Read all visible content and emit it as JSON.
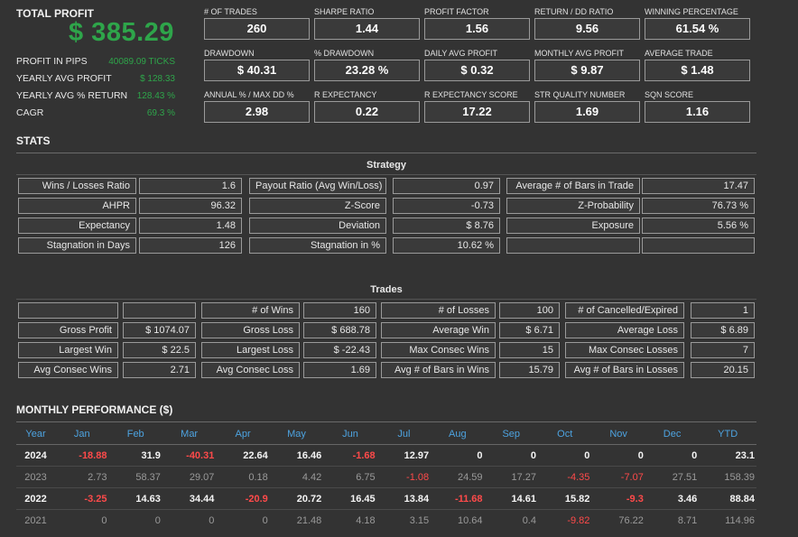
{
  "total": {
    "label": "TOTAL PROFIT",
    "value": "$ 385.29",
    "rows": [
      {
        "k": "PROFIT IN PIPS",
        "v": "40089.09 TICKS"
      },
      {
        "k": "YEARLY AVG PROFIT",
        "v": "$ 128.33"
      },
      {
        "k": "YEARLY AVG % RETURN",
        "v": "128.43 %"
      },
      {
        "k": "CAGR",
        "v": "69.3 %"
      }
    ]
  },
  "metrics": [
    {
      "label": "# OF TRADES",
      "value": "260"
    },
    {
      "label": "SHARPE RATIO",
      "value": "1.44"
    },
    {
      "label": "PROFIT FACTOR",
      "value": "1.56"
    },
    {
      "label": "RETURN / DD RATIO",
      "value": "9.56"
    },
    {
      "label": "WINNING PERCENTAGE",
      "value": "61.54 %"
    },
    {
      "label": "DRAWDOWN",
      "value": "$ 40.31"
    },
    {
      "label": "% DRAWDOWN",
      "value": "23.28 %"
    },
    {
      "label": "DAILY AVG PROFIT",
      "value": "$ 0.32"
    },
    {
      "label": "MONTHLY AVG PROFIT",
      "value": "$ 9.87"
    },
    {
      "label": "AVERAGE TRADE",
      "value": "$ 1.48"
    },
    {
      "label": "ANNUAL % / MAX DD %",
      "value": "2.98"
    },
    {
      "label": "R EXPECTANCY",
      "value": "0.22"
    },
    {
      "label": "R EXPECTANCY SCORE",
      "value": "17.22"
    },
    {
      "label": "STR QUALITY NUMBER",
      "value": "1.69"
    },
    {
      "label": "SQN SCORE",
      "value": "1.16"
    }
  ],
  "stats": {
    "title": "STATS",
    "strategy_title": "Strategy",
    "strategy": [
      [
        "Wins / Losses Ratio",
        "1.6",
        "Payout Ratio (Avg Win/Loss)",
        "0.97",
        "Average # of Bars in Trade",
        "17.47"
      ],
      [
        "AHPR",
        "96.32",
        "Z-Score",
        "-0.73",
        "Z-Probability",
        "76.73 %"
      ],
      [
        "Expectancy",
        "1.48",
        "Deviation",
        "$ 8.76",
        "Exposure",
        "5.56 %"
      ],
      [
        "Stagnation in Days",
        "126",
        "Stagnation in %",
        "10.62 %",
        "",
        ""
      ]
    ],
    "trades_title": "Trades",
    "trades": [
      [
        "",
        "",
        "# of Wins",
        "160",
        "# of Losses",
        "100",
        "# of Cancelled/Expired",
        "1"
      ],
      [
        "Gross Profit",
        "$ 1074.07",
        "Gross Loss",
        "$ 688.78",
        "Average Win",
        "$ 6.71",
        "Average Loss",
        "$ 6.89"
      ],
      [
        "Largest Win",
        "$ 22.5",
        "Largest Loss",
        "$ -22.43",
        "Max Consec Wins",
        "15",
        "Max Consec Losses",
        "7"
      ],
      [
        "Avg Consec Wins",
        "2.71",
        "Avg Consec Loss",
        "1.69",
        "Avg # of Bars in Wins",
        "15.79",
        "Avg # of Bars in Losses",
        "20.15"
      ]
    ]
  },
  "monthly": {
    "title": "MONTHLY PERFORMANCE ($)",
    "headers": [
      "Year",
      "Jan",
      "Feb",
      "Mar",
      "Apr",
      "May",
      "Jun",
      "Jul",
      "Aug",
      "Sep",
      "Oct",
      "Nov",
      "Dec",
      "YTD"
    ],
    "rows": [
      {
        "style": "b",
        "cells": [
          "2024",
          "-18.88",
          "31.9",
          "-40.31",
          "22.64",
          "16.46",
          "-1.68",
          "12.97",
          "0",
          "0",
          "0",
          "0",
          "0",
          "23.1"
        ]
      },
      {
        "style": "g",
        "cells": [
          "2023",
          "2.73",
          "58.37",
          "29.07",
          "0.18",
          "4.42",
          "6.75",
          "-1.08",
          "24.59",
          "17.27",
          "-4.35",
          "-7.07",
          "27.51",
          "158.39"
        ]
      },
      {
        "style": "b",
        "cells": [
          "2022",
          "-3.25",
          "14.63",
          "34.44",
          "-20.9",
          "20.72",
          "16.45",
          "13.84",
          "-11.68",
          "14.61",
          "15.82",
          "-9.3",
          "3.46",
          "88.84"
        ]
      },
      {
        "style": "g",
        "cells": [
          "2021",
          "0",
          "0",
          "0",
          "0",
          "21.48",
          "4.18",
          "3.15",
          "10.64",
          "0.4",
          "-9.82",
          "76.22",
          "8.71",
          "114.96"
        ]
      }
    ]
  },
  "colors": {
    "positive": "#2ea54a",
    "negative": "#ff4a4a",
    "header": "#4da3e0"
  }
}
